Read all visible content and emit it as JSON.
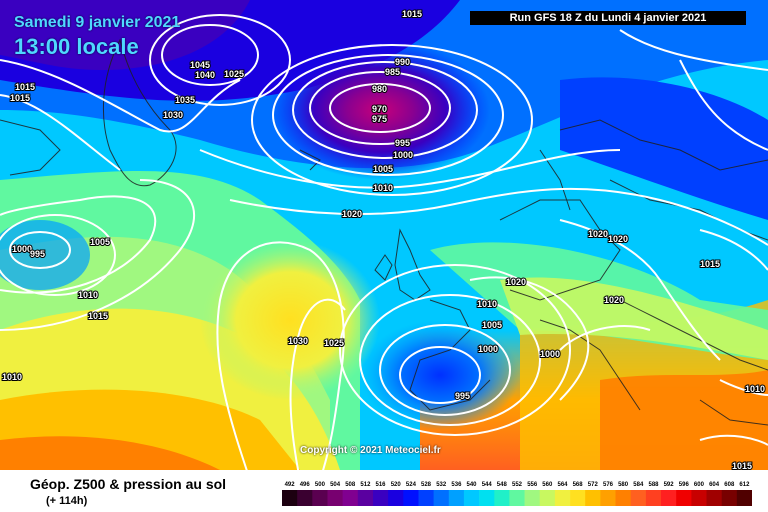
{
  "header": {
    "date": "Samedi 9 janvier 2021",
    "time": "13:00 locale",
    "run": "Run GFS 18 Z du Lundi 4 janvier 2021"
  },
  "copyright": "Copyright © 2021 Meteociel.fr",
  "footer": {
    "title": "Géop. Z500 & pression au sol",
    "subtitle": "(+ 114h)"
  },
  "scale": {
    "values": [
      "492",
      "496",
      "500",
      "504",
      "508",
      "512",
      "516",
      "520",
      "524",
      "528",
      "532",
      "536",
      "540",
      "544",
      "548",
      "552",
      "556",
      "560",
      "564",
      "568",
      "572",
      "576",
      "580",
      "584",
      "588",
      "592",
      "596",
      "600",
      "604",
      "608",
      "612"
    ],
    "colors": [
      "#1c0010",
      "#3a0030",
      "#5a0050",
      "#780070",
      "#800090",
      "#5a00a0",
      "#3a00c0",
      "#1a00e0",
      "#0010ff",
      "#0040ff",
      "#0070ff",
      "#00a0ff",
      "#00c8ff",
      "#00e0f0",
      "#20f0c8",
      "#60f8a0",
      "#a0f880",
      "#c8f860",
      "#f0f040",
      "#ffe020",
      "#ffc000",
      "#ffa000",
      "#ff8000",
      "#ff6020",
      "#ff4020",
      "#ff2020",
      "#f00000",
      "#c80000",
      "#a00000",
      "#780000",
      "#500000"
    ]
  },
  "isobars": [
    "1015",
    "1015",
    "1045",
    "1040",
    "1025",
    "1035",
    "1030",
    "1015",
    "990",
    "985",
    "980",
    "970",
    "975",
    "995",
    "1000",
    "1005",
    "1010",
    "1020",
    "1020",
    "1020",
    "1015",
    "1000",
    "995",
    "1005",
    "1010",
    "1015",
    "1030",
    "1025",
    "1010",
    "1005",
    "1000",
    "1010",
    "995",
    "1020",
    "1000",
    "1015",
    "1010",
    "1020"
  ]
}
